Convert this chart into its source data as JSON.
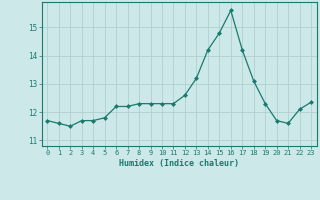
{
  "x": [
    0,
    1,
    2,
    3,
    4,
    5,
    6,
    7,
    8,
    9,
    10,
    11,
    12,
    13,
    14,
    15,
    16,
    17,
    18,
    19,
    20,
    21,
    22,
    23
  ],
  "y": [
    11.7,
    11.6,
    11.5,
    11.7,
    11.7,
    11.8,
    12.2,
    12.2,
    12.3,
    12.3,
    12.3,
    12.3,
    12.6,
    13.2,
    14.2,
    14.8,
    15.6,
    14.2,
    13.1,
    12.3,
    11.7,
    11.6,
    12.1,
    12.35
  ],
  "xlabel": "Humidex (Indice chaleur)",
  "ylim": [
    10.8,
    15.9
  ],
  "xlim": [
    -0.5,
    23.5
  ],
  "yticks": [
    11,
    12,
    13,
    14,
    15
  ],
  "xticks": [
    0,
    1,
    2,
    3,
    4,
    5,
    6,
    7,
    8,
    9,
    10,
    11,
    12,
    13,
    14,
    15,
    16,
    17,
    18,
    19,
    20,
    21,
    22,
    23
  ],
  "line_color": "#1a7a6e",
  "marker_color": "#1a7a6e",
  "bg_color": "#cce8e8",
  "grid_color": "#aacccc",
  "axis_color": "#1a7a6e",
  "label_color": "#1a7a6e"
}
